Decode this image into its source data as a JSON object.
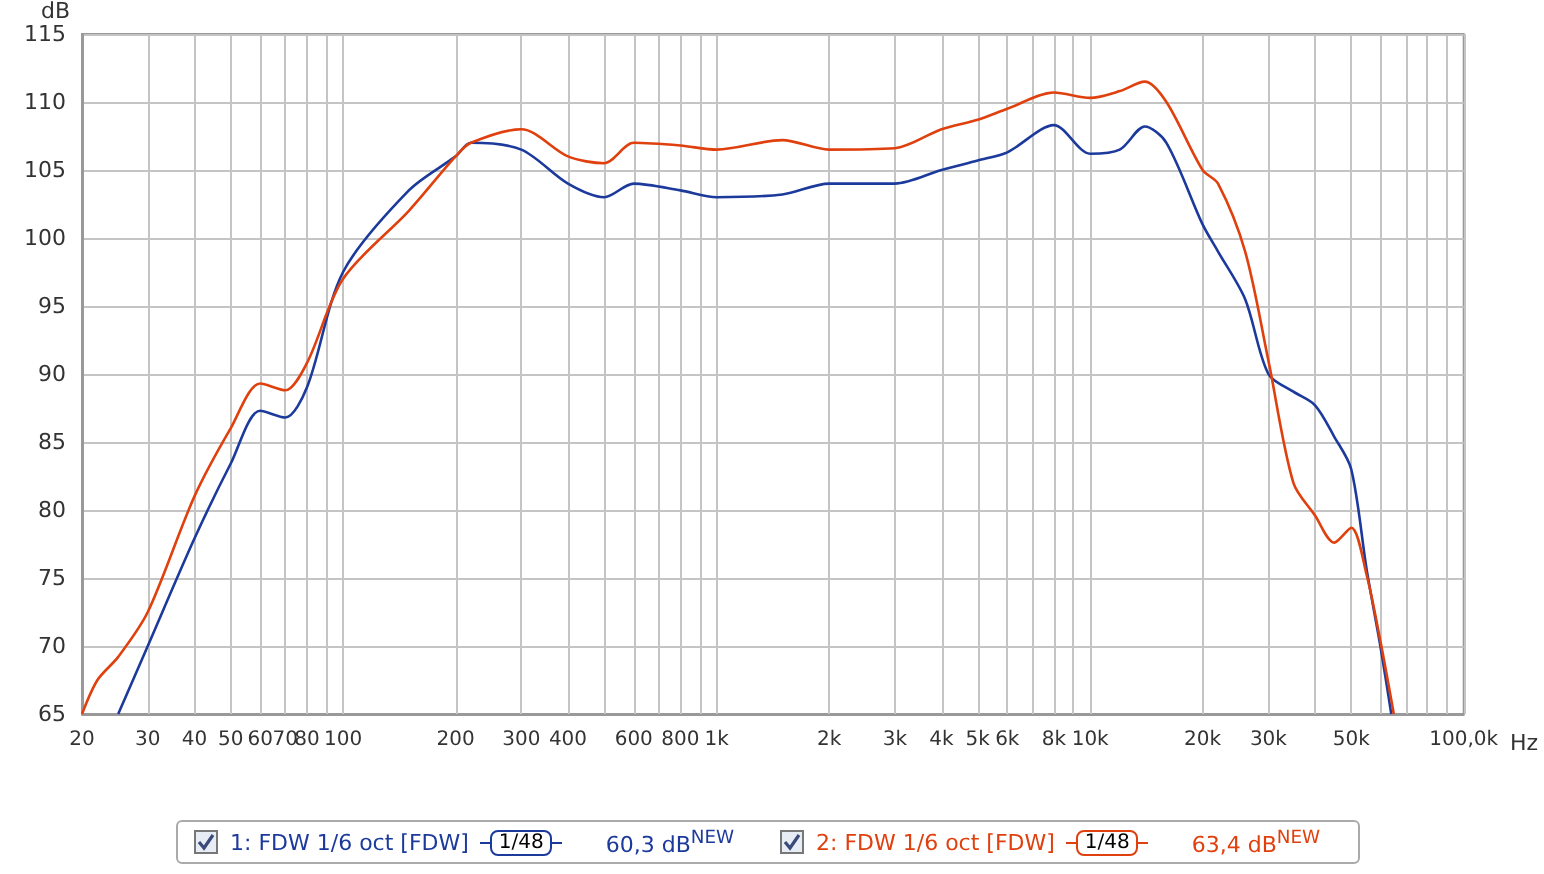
{
  "chart_data": {
    "type": "line",
    "xlabel": "Hz",
    "ylabel": "dB",
    "log": "x",
    "grid": true,
    "legend": "bottom",
    "marker": "none",
    "line_style": "solid",
    "xlim": [
      20,
      100000
    ],
    "ylim": [
      65,
      115
    ],
    "xticks": [
      20,
      30,
      40,
      50,
      60,
      70,
      80,
      {
        "value": 90,
        "label": null
      },
      100,
      200,
      300,
      400,
      {
        "value": 500,
        "label": null
      },
      600,
      {
        "value": 700,
        "label": null
      },
      800,
      {
        "value": 900,
        "label": null
      },
      {
        "value": 1000,
        "label": "1k"
      },
      {
        "value": 2000,
        "label": "2k"
      },
      {
        "value": 3000,
        "label": "3k"
      },
      {
        "value": 4000,
        "label": "4k"
      },
      {
        "value": 5000,
        "label": "5k"
      },
      {
        "value": 6000,
        "label": "6k"
      },
      {
        "value": 7000,
        "label": null
      },
      {
        "value": 8000,
        "label": "8k"
      },
      {
        "value": 9000,
        "label": null
      },
      {
        "value": 10000,
        "label": "10k"
      },
      {
        "value": 20000,
        "label": "20k"
      },
      {
        "value": 30000,
        "label": "30k"
      },
      {
        "value": 40000,
        "label": null
      },
      {
        "value": 50000,
        "label": "50k"
      },
      {
        "value": 60000,
        "label": null
      },
      {
        "value": 70000,
        "label": null
      },
      {
        "value": 80000,
        "label": null
      },
      {
        "value": 90000,
        "label": null
      },
      {
        "value": 100000,
        "label": "100,0k"
      }
    ],
    "yticks": [
      65,
      70,
      75,
      80,
      85,
      90,
      95,
      100,
      105,
      110,
      115
    ],
    "annotations": [
      "1/48",
      "60,3 dB$^{NEW}$",
      "1/48",
      "63,4 dB$^{NEW}$"
    ],
    "series": [
      {
        "name": "1: FDW 1/6 oct [FDW]",
        "color": "#1c3a9c",
        "x": [
          25,
          30,
          40,
          50,
          60,
          70,
          80,
          100,
          150,
          200,
          220,
          300,
          400,
          500,
          600,
          800,
          1000,
          1500,
          2000,
          3000,
          4000,
          5000,
          6000,
          8000,
          10000,
          12000,
          14000,
          16000,
          20000,
          22000,
          26000,
          30000,
          35000,
          40000,
          45000,
          50000,
          55000,
          60000,
          64000
        ],
        "values": [
          65,
          70,
          77.9,
          83.4,
          87.3,
          86.8,
          89,
          97.5,
          103.5,
          106,
          107,
          106.5,
          104,
          103,
          104,
          103.5,
          103,
          103.2,
          104,
          104,
          105,
          105.7,
          106.3,
          108.3,
          106.2,
          106.5,
          108.2,
          107,
          101,
          99,
          95.5,
          90,
          88.7,
          87.7,
          85.4,
          83,
          75.6,
          69.8,
          65
        ]
      },
      {
        "name": "2: FDW 1/6 oct [FDW]",
        "color": "#e0400e",
        "x": [
          20,
          22,
          25,
          30,
          40,
          50,
          60,
          70,
          80,
          100,
          150,
          200,
          220,
          300,
          400,
          500,
          600,
          800,
          1000,
          1500,
          2000,
          3000,
          4000,
          5000,
          6000,
          8000,
          10000,
          12000,
          14000,
          16000,
          20000,
          22000,
          26000,
          30000,
          35000,
          40000,
          45000,
          50000,
          55000,
          60000,
          65000
        ],
        "values": [
          65,
          67.5,
          69.2,
          72.5,
          81,
          86,
          89.3,
          88.8,
          90.8,
          97,
          102,
          106,
          107,
          108,
          106,
          105.5,
          107,
          106.8,
          106.5,
          107.2,
          106.5,
          106.6,
          108,
          108.7,
          109.5,
          110.7,
          110.3,
          110.8,
          111.5,
          110,
          105,
          104,
          99,
          91,
          82,
          79.6,
          77.6,
          78.7,
          75.2,
          70.2,
          65
        ]
      }
    ]
  }
}
